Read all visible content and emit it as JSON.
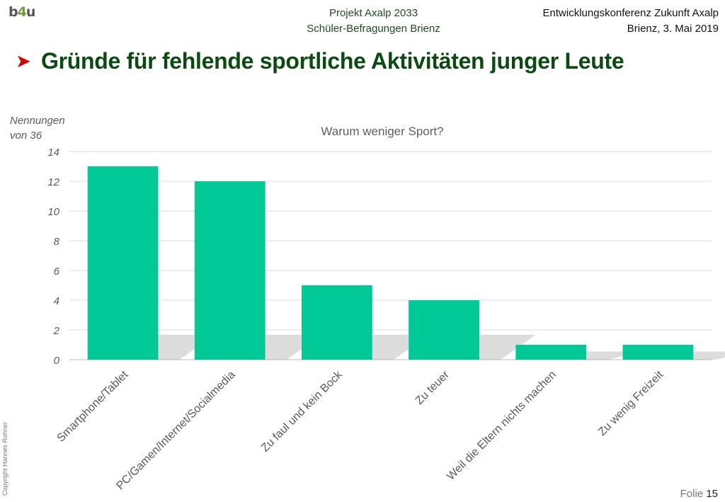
{
  "header": {
    "logo_prefix": "b",
    "logo_four": "4",
    "logo_suffix": "u",
    "project_line1": "Projekt Axalp 2033",
    "project_line2": "Schüler-Befragungen Brienz",
    "event_line1": "Entwicklungskonferenz Zukunft Axalp",
    "event_line2": "Brienz, 3. Mai 2019"
  },
  "slide": {
    "title": "Gründe für fehlende sportliche Aktivitäten junger Leute",
    "bullet_icon": "arrow-bullet-icon",
    "y_axis_line1": "Nennungen",
    "y_axis_line2": "von 36",
    "copyright": "Copyright Hannes Rohner",
    "folio_label": "Folie",
    "folio_number": "15"
  },
  "colors": {
    "bar": "#00c896",
    "title": "#0b4a10",
    "bullet": "#d00000"
  },
  "chart_data": {
    "type": "bar",
    "title": "Warum weniger Sport?",
    "categories": [
      "Smartphone/Tablet",
      "PC/Gamen/Internet/Socialmedia",
      "Zu faul und kein Bock",
      "Zu teuer",
      "Weil die Eltern nichts machen",
      "Zu wenig Freizeit"
    ],
    "values": [
      13,
      12,
      5,
      4,
      1,
      1
    ],
    "yticks": [
      0,
      2,
      4,
      6,
      8,
      10,
      12,
      14
    ],
    "ylim": [
      0,
      14
    ],
    "grid": true,
    "legend": "none"
  }
}
